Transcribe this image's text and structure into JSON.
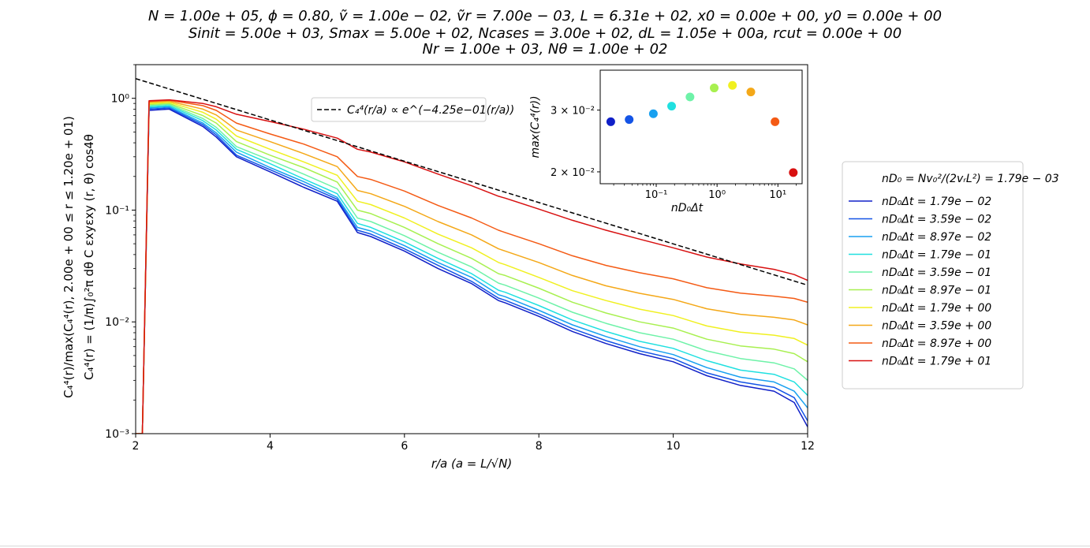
{
  "chart_data": [
    {
      "type": "line",
      "title_lines": [
        "N = 1.00e + 05, ϕ = 0.80, ṽ = 1.00e − 02, ṽr = 7.00e − 03, L = 6.31e + 02, x0 = 0.00e + 00, y0 = 0.00e + 00",
        "Sinit = 5.00e + 03, Smax = 5.00e + 02, Ncases = 3.00e + 02, dL = 1.05e + 00a, rcut = 0.00e + 00",
        "Nr = 1.00e + 03, Nθ = 1.00e + 02"
      ],
      "xlabel": "r/a (a = L/√N)",
      "ylabel_lines": [
        "C₄⁴(r)/max(C₄⁴(r), 2.00e + 00 ≤ r ≤ 1.20e + 01)",
        "C₄⁴(r) = (1/π)∫₀²π dθ C εxyεxy (r, θ) cos4θ"
      ],
      "xlim": [
        2,
        12
      ],
      "ylim": [
        0.001,
        2
      ],
      "yscale": "log",
      "grid": false,
      "x_ticks": [
        {
          "value": 2,
          "label": "2"
        },
        {
          "value": 4,
          "label": "4"
        },
        {
          "value": 6,
          "label": "6"
        },
        {
          "value": 8,
          "label": "8"
        },
        {
          "value": 10,
          "label": "10"
        },
        {
          "value": 12,
          "label": "12"
        }
      ],
      "y_ticks": [
        {
          "value": 1,
          "label": "10⁰"
        },
        {
          "value": 0.1,
          "label": "10⁻¹"
        },
        {
          "value": 0.01,
          "label": "10⁻²"
        },
        {
          "value": 0.001,
          "label": "10⁻³"
        }
      ],
      "fit": {
        "label": "C₄⁴(r/a) ∝ e^(−4.25e−01(r/a))",
        "style": "dashed",
        "color": "#000000",
        "x": [
          2,
          12
        ],
        "y": [
          1.5,
          0.0213
        ]
      },
      "legend_position": "right",
      "legend_header": "nD₀ = Nv₀²/(2vᵣL²) = 1.79e − 03",
      "x": [
        2.0,
        2.1,
        2.2,
        2.5,
        3.0,
        3.2,
        3.5,
        4.0,
        4.5,
        5.0,
        5.3,
        5.5,
        6.0,
        6.5,
        7.0,
        7.4,
        7.5,
        8.0,
        8.5,
        9.0,
        9.5,
        10.0,
        10.5,
        11.0,
        11.5,
        11.8,
        12.0
      ],
      "series": [
        {
          "name": "nD₀Δt = 1.79e − 02",
          "color": "#1020c8",
          "values": [
            0.001,
            0.001,
            0.78,
            0.8,
            0.56,
            0.45,
            0.3,
            0.22,
            0.16,
            0.12,
            0.063,
            0.058,
            0.043,
            0.03,
            0.022,
            0.0155,
            0.0148,
            0.0112,
            0.0082,
            0.0064,
            0.0052,
            0.0044,
            0.0033,
            0.0027,
            0.0024,
            0.0019,
            0.00115
          ]
        },
        {
          "name": "nD₀Δt = 3.59e − 02",
          "color": "#1454e6",
          "values": [
            0.001,
            0.001,
            0.8,
            0.82,
            0.58,
            0.47,
            0.31,
            0.23,
            0.17,
            0.125,
            0.066,
            0.061,
            0.045,
            0.032,
            0.023,
            0.0163,
            0.0156,
            0.0118,
            0.0087,
            0.0068,
            0.0055,
            0.0047,
            0.0035,
            0.0029,
            0.0026,
            0.0021,
            0.0013
          ]
        },
        {
          "name": "nD₀Δt = 8.97e − 02",
          "color": "#18a0f0",
          "values": [
            0.001,
            0.001,
            0.82,
            0.84,
            0.6,
            0.49,
            0.33,
            0.24,
            0.18,
            0.13,
            0.07,
            0.065,
            0.048,
            0.034,
            0.025,
            0.0175,
            0.0168,
            0.0127,
            0.0094,
            0.0074,
            0.006,
            0.0051,
            0.0039,
            0.0032,
            0.0029,
            0.0024,
            0.0017
          ]
        },
        {
          "name": "nD₀Δt = 1.79e − 01",
          "color": "#20e0e0",
          "values": [
            0.001,
            0.001,
            0.84,
            0.86,
            0.63,
            0.52,
            0.35,
            0.26,
            0.19,
            0.14,
            0.076,
            0.07,
            0.052,
            0.037,
            0.027,
            0.0192,
            0.0184,
            0.014,
            0.0104,
            0.0082,
            0.0067,
            0.0058,
            0.0045,
            0.0037,
            0.0034,
            0.0029,
            0.0022
          ]
        },
        {
          "name": "nD₀Δt = 3.59e − 01",
          "color": "#6ef2a8",
          "values": [
            0.001,
            0.001,
            0.86,
            0.88,
            0.66,
            0.55,
            0.37,
            0.28,
            0.21,
            0.155,
            0.085,
            0.079,
            0.059,
            0.042,
            0.031,
            0.0222,
            0.0213,
            0.0163,
            0.0122,
            0.0097,
            0.008,
            0.007,
            0.0055,
            0.0047,
            0.0043,
            0.0038,
            0.003
          ]
        },
        {
          "name": "nD₀Δt = 8.97e − 01",
          "color": "#a8f050",
          "values": [
            0.001,
            0.001,
            0.88,
            0.9,
            0.7,
            0.6,
            0.41,
            0.31,
            0.24,
            0.178,
            0.1,
            0.093,
            0.07,
            0.05,
            0.037,
            0.027,
            0.026,
            0.02,
            0.015,
            0.012,
            0.01,
            0.0088,
            0.007,
            0.0061,
            0.0057,
            0.0052,
            0.0044
          ]
        },
        {
          "name": "nD₀Δt = 1.79e + 00",
          "color": "#f0f020",
          "values": [
            0.001,
            0.001,
            0.9,
            0.92,
            0.75,
            0.65,
            0.46,
            0.35,
            0.27,
            0.205,
            0.12,
            0.112,
            0.085,
            0.061,
            0.046,
            0.034,
            0.0325,
            0.025,
            0.019,
            0.0155,
            0.013,
            0.0114,
            0.0092,
            0.0081,
            0.0076,
            0.0071,
            0.0062
          ]
        },
        {
          "name": "nD₀Δt = 3.59e + 00",
          "color": "#f4a818",
          "values": [
            0.001,
            0.001,
            0.92,
            0.94,
            0.8,
            0.71,
            0.52,
            0.41,
            0.32,
            0.245,
            0.15,
            0.14,
            0.108,
            0.079,
            0.06,
            0.045,
            0.043,
            0.034,
            0.026,
            0.021,
            0.018,
            0.0159,
            0.0131,
            0.0117,
            0.011,
            0.0104,
            0.0094
          ]
        },
        {
          "name": "nD₀Δt = 8.97e + 00",
          "color": "#f45a14",
          "values": [
            0.001,
            0.001,
            0.94,
            0.96,
            0.86,
            0.78,
            0.6,
            0.48,
            0.39,
            0.3,
            0.2,
            0.188,
            0.148,
            0.11,
            0.085,
            0.066,
            0.063,
            0.05,
            0.039,
            0.032,
            0.0275,
            0.0243,
            0.0202,
            0.0181,
            0.017,
            0.0162,
            0.015
          ]
        },
        {
          "name": "nD₀Δt = 1.79e + 01",
          "color": "#d81010",
          "values": [
            0.001,
            0.001,
            0.95,
            0.97,
            0.9,
            0.84,
            0.72,
            0.62,
            0.53,
            0.44,
            0.35,
            0.33,
            0.27,
            0.21,
            0.165,
            0.133,
            0.128,
            0.102,
            0.081,
            0.066,
            0.055,
            0.046,
            0.038,
            0.033,
            0.0295,
            0.0265,
            0.0235
          ]
        }
      ]
    },
    {
      "type": "scatter",
      "xlabel": "nD₀Δt",
      "ylabel": "max(C₄⁴(r))",
      "xscale": "log",
      "yscale": "log",
      "xlim": [
        0.012,
        25
      ],
      "ylim": [
        0.0185,
        0.039
      ],
      "x_ticks": [
        {
          "value": 0.1,
          "label": "10⁻¹"
        },
        {
          "value": 1,
          "label": "10⁰"
        },
        {
          "value": 10,
          "label": "10¹"
        }
      ],
      "y_ticks": [
        {
          "value": 0.02,
          "label": "2 × 10⁻²"
        },
        {
          "value": 0.03,
          "label": "3 × 10⁻²"
        }
      ],
      "points": [
        {
          "x": 0.0179,
          "y": 0.0278,
          "color": "#1020c8"
        },
        {
          "x": 0.0359,
          "y": 0.0282,
          "color": "#1454e6"
        },
        {
          "x": 0.0897,
          "y": 0.0293,
          "color": "#18a0f0"
        },
        {
          "x": 0.179,
          "y": 0.0308,
          "color": "#20e0e0"
        },
        {
          "x": 0.359,
          "y": 0.0327,
          "color": "#6ef2a8"
        },
        {
          "x": 0.897,
          "y": 0.0347,
          "color": "#a8f050"
        },
        {
          "x": 1.79,
          "y": 0.0353,
          "color": "#f0f020"
        },
        {
          "x": 3.59,
          "y": 0.0338,
          "color": "#f4a818"
        },
        {
          "x": 8.97,
          "y": 0.0278,
          "color": "#f45a14"
        },
        {
          "x": 17.9,
          "y": 0.0199,
          "color": "#d81010"
        }
      ]
    }
  ]
}
